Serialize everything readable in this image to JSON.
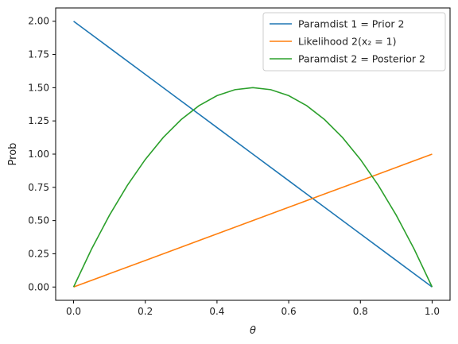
{
  "chart_data": {
    "type": "line",
    "xlabel": "θ",
    "ylabel": "Prob",
    "xlim": [
      -0.05,
      1.05
    ],
    "ylim": [
      -0.1,
      2.1
    ],
    "x_ticks": [
      0.0,
      0.2,
      0.4,
      0.6,
      0.8,
      1.0
    ],
    "x_tick_labels": [
      "0.0",
      "0.2",
      "0.4",
      "0.6",
      "0.8",
      "1.0"
    ],
    "y_ticks": [
      0.0,
      0.25,
      0.5,
      0.75,
      1.0,
      1.25,
      1.5,
      1.75,
      2.0
    ],
    "y_tick_labels": [
      "0.00",
      "0.25",
      "0.50",
      "0.75",
      "1.00",
      "1.25",
      "1.50",
      "1.75",
      "2.00"
    ],
    "grid": false,
    "legend_position": "top-right",
    "series": [
      {
        "name": "Paramdist 1 = Prior 2",
        "color": "#1f77b4",
        "x": [
          0.0,
          0.1,
          0.2,
          0.3,
          0.4,
          0.5,
          0.6,
          0.7,
          0.8,
          0.9,
          1.0
        ],
        "y": [
          2.0,
          1.8,
          1.6,
          1.4,
          1.2,
          1.0,
          0.8,
          0.6,
          0.4,
          0.2,
          0.0
        ]
      },
      {
        "name": "Likelihood 2(x₂ = 1)",
        "color": "#ff7f0e",
        "x": [
          0.0,
          0.1,
          0.2,
          0.3,
          0.4,
          0.5,
          0.6,
          0.7,
          0.8,
          0.9,
          1.0
        ],
        "y": [
          0.0,
          0.1,
          0.2,
          0.3,
          0.4,
          0.5,
          0.6,
          0.7,
          0.8,
          0.9,
          1.0
        ]
      },
      {
        "name": "Paramdist 2 = Posterior 2",
        "color": "#2ca02c",
        "x": [
          0.0,
          0.05,
          0.1,
          0.15,
          0.2,
          0.25,
          0.3,
          0.35,
          0.4,
          0.45,
          0.5,
          0.55,
          0.6,
          0.65,
          0.7,
          0.75,
          0.8,
          0.85,
          0.9,
          0.95,
          1.0
        ],
        "y": [
          0.0,
          0.285,
          0.54,
          0.765,
          0.96,
          1.125,
          1.26,
          1.365,
          1.44,
          1.485,
          1.5,
          1.485,
          1.44,
          1.365,
          1.26,
          1.125,
          0.96,
          0.765,
          0.54,
          0.285,
          0.0
        ]
      }
    ]
  }
}
